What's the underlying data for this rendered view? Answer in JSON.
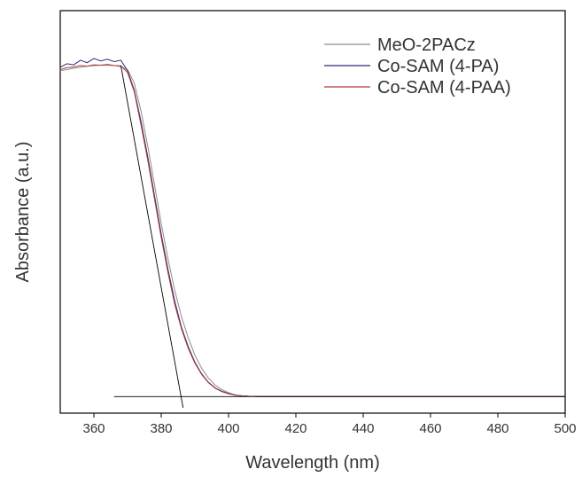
{
  "chart_data": {
    "type": "line",
    "title": "",
    "xlabel": "Wavelength (nm)",
    "ylabel": "Absorbance (a.u.)",
    "xlim": [
      350,
      500
    ],
    "ylim": [
      0,
      1
    ],
    "x_ticks": [
      360,
      380,
      400,
      420,
      440,
      460,
      480,
      500
    ],
    "x_tick_labels": [
      "360",
      "380",
      "400",
      "420",
      "440",
      "460",
      "480",
      "500"
    ],
    "y_ticks_visible": false,
    "grid": false,
    "legend_position": "top-right",
    "series": [
      {
        "name": "MeO-2PACz",
        "color": "#8a8a8a",
        "x": [
          350,
          354,
          358,
          362,
          366,
          368,
          370,
          372,
          374,
          376,
          378,
          380,
          382,
          384,
          386,
          388,
          390,
          392,
          394,
          396,
          398,
          400,
          402,
          404,
          406,
          410,
          420,
          440,
          460,
          480,
          500
        ],
        "y": [
          0.955,
          0.962,
          0.968,
          0.971,
          0.97,
          0.967,
          0.958,
          0.92,
          0.84,
          0.74,
          0.63,
          0.52,
          0.42,
          0.33,
          0.255,
          0.195,
          0.145,
          0.108,
          0.08,
          0.06,
          0.047,
          0.038,
          0.032,
          0.029,
          0.028,
          0.027,
          0.027,
          0.027,
          0.027,
          0.027,
          0.027
        ]
      },
      {
        "name": "Co-SAM (4-PA)",
        "color": "#2a2a7a",
        "x": [
          350,
          352,
          354,
          356,
          358,
          360,
          362,
          364,
          366,
          368,
          370,
          372,
          374,
          376,
          378,
          380,
          382,
          384,
          386,
          388,
          390,
          392,
          394,
          396,
          398,
          400,
          402,
          404,
          406,
          410,
          420,
          440,
          460,
          480,
          500
        ],
        "y": [
          0.965,
          0.975,
          0.972,
          0.985,
          0.978,
          0.99,
          0.983,
          0.988,
          0.981,
          0.985,
          0.955,
          0.9,
          0.81,
          0.71,
          0.6,
          0.49,
          0.39,
          0.3,
          0.225,
          0.17,
          0.125,
          0.092,
          0.068,
          0.052,
          0.042,
          0.036,
          0.031,
          0.029,
          0.028,
          0.027,
          0.027,
          0.027,
          0.027,
          0.027,
          0.027
        ]
      },
      {
        "name": "Co-SAM (4-PAA)",
        "color": "#b03a3a",
        "x": [
          350,
          352,
          354,
          356,
          358,
          360,
          362,
          364,
          366,
          368,
          370,
          372,
          374,
          376,
          378,
          380,
          382,
          384,
          386,
          388,
          390,
          392,
          394,
          396,
          398,
          400,
          402,
          404,
          406,
          410,
          420,
          440,
          460,
          480,
          500
        ],
        "y": [
          0.958,
          0.964,
          0.966,
          0.97,
          0.968,
          0.972,
          0.971,
          0.973,
          0.97,
          0.969,
          0.95,
          0.895,
          0.8,
          0.7,
          0.59,
          0.48,
          0.38,
          0.29,
          0.22,
          0.165,
          0.122,
          0.09,
          0.067,
          0.051,
          0.041,
          0.035,
          0.031,
          0.029,
          0.028,
          0.027,
          0.027,
          0.027,
          0.027,
          0.027,
          0.027
        ]
      }
    ],
    "annotations": [
      {
        "type": "tangent-line",
        "color": "#000000",
        "x": [
          368,
          386.5
        ],
        "y": [
          0.97,
          -0.005
        ]
      },
      {
        "type": "baseline",
        "color": "#000000",
        "x": [
          366,
          500
        ],
        "y": [
          0.027,
          0.027
        ]
      }
    ]
  }
}
